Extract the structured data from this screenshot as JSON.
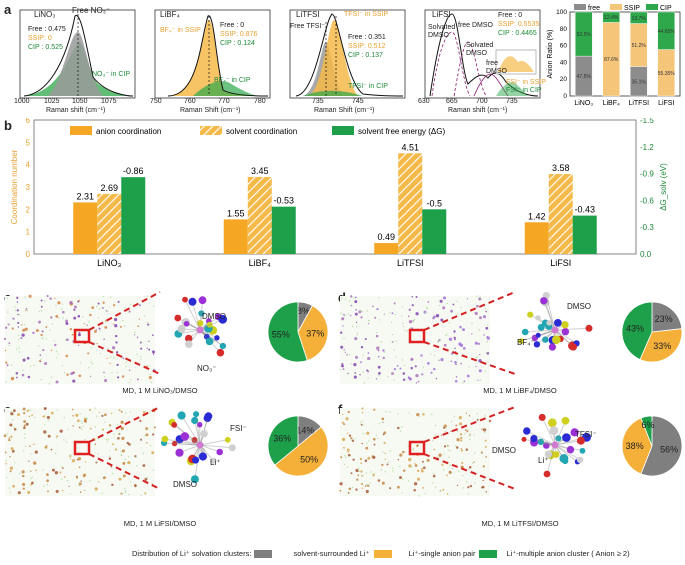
{
  "figure": {
    "panels": [
      "a",
      "b",
      "c",
      "d",
      "e",
      "f"
    ]
  },
  "panel_a": {
    "spectra": [
      {
        "title": "LiNO₃",
        "free_label": "Free NO₃⁻",
        "free": "Free : 0.475",
        "ssip": "SSIP: 0",
        "cip": "CIP : 0.525",
        "cip_label": "NO₃⁻ in CIP",
        "xlabel": "Raman shift (cm⁻¹)",
        "ticks": [
          "1000",
          "1025",
          "1050",
          "1075"
        ]
      },
      {
        "title": "LiBF₄",
        "ssip_label": "BF₄⁻ in SSIP",
        "free": "Free : 0",
        "ssip": "SSIP: 0.876",
        "cip": "CIP : 0.124",
        "cip_label": "BF₄⁻ in CIP",
        "xlabel": "Raman Shift (cm⁻¹)",
        "ticks": [
          "750",
          "760",
          "770",
          "780"
        ]
      },
      {
        "title": "LiTFSI",
        "free_label": "Free TFSI⁻",
        "ssip_label": "TFSI⁻ in SSIP",
        "free": "Free : 0.351",
        "ssip": "SSIP: 0.512",
        "cip": "CIP : 0.137",
        "cip_label": "TFSI⁻ in CIP",
        "xlabel": "Raman Shift (cm⁻¹)",
        "ticks": [
          "735",
          "745"
        ]
      },
      {
        "title": "LiFSI",
        "solvated": "Solvated DMSO",
        "free_dmso": "free DMSO",
        "solvated2": "Solvated DMSO",
        "free_dmso2": "free DMSO",
        "free": "Free : 0",
        "ssip": "SSIP: 0.5535",
        "cip": "CIP : 0.4465",
        "ssip_label": "FSI⁻ in SSIP",
        "cip_label": "FSI⁻ in CIP",
        "xlabel": "Raman shift (cm⁻¹)",
        "ticks": [
          "630",
          "665",
          "700",
          "735"
        ]
      }
    ]
  },
  "chart_data": [
    {
      "type": "bar",
      "title": "Anion Ratio",
      "ylabel": "Anion Ratio (%)",
      "ylim": [
        0,
        100
      ],
      "yticks": [
        "0",
        "20",
        "40",
        "60",
        "80",
        "100"
      ],
      "categories": [
        "LiNO₃",
        "LiBF₄",
        "LiTFSI",
        "LiFSI"
      ],
      "legend": [
        "free",
        "SSIP",
        "CIP"
      ],
      "series": [
        {
          "name": "free",
          "values": [
            47.5,
            0,
            35.1,
            0
          ]
        },
        {
          "name": "SSIP",
          "values": [
            0,
            87.6,
            51.2,
            55.35
          ]
        },
        {
          "name": "CIP",
          "values": [
            52.5,
            12.4,
            13.7,
            44.65
          ]
        }
      ],
      "labels": {
        "free": [
          "47.5%",
          "",
          "35.1%",
          ""
        ],
        "SSIP": [
          "",
          "87.6%",
          "51.2%",
          "55.35%"
        ],
        "CIP": [
          "52.5%",
          "12.4%",
          "13.7%",
          "44.65%"
        ]
      },
      "colors": {
        "free": "#8c8c8c",
        "SSIP": "#f5c57a",
        "CIP": "#2ea84a"
      }
    },
    {
      "type": "bar",
      "title": "Coordination",
      "ylabel": "Coordination number",
      "y2label": "ΔG_solv (eV)",
      "ylim": [
        0,
        6
      ],
      "y2lim": [
        0,
        -1.5
      ],
      "yticks": [
        "0",
        "1",
        "2",
        "3",
        "4",
        "5",
        "6"
      ],
      "y2ticks": [
        "0.0",
        "-0.3",
        "-0.6",
        "-0.9",
        "-1.2",
        "-1.5"
      ],
      "categories": [
        "LiNO₃",
        "LiBF₄",
        "LiTFSI",
        "LiFSI"
      ],
      "legend": [
        "anion coordination",
        "solvent coordination",
        "solvent free energy (ΔG)"
      ],
      "series": [
        {
          "name": "anion coordination",
          "values": [
            2.31,
            1.55,
            0.49,
            1.42
          ]
        },
        {
          "name": "solvent coordination",
          "values": [
            2.69,
            3.45,
            4.51,
            3.58
          ]
        },
        {
          "name": "solvent free energy (ΔG)",
          "values": [
            -0.86,
            -0.53,
            -0.5,
            -0.43
          ]
        }
      ],
      "value_labels": {
        "anion": [
          "2.31",
          "1.55",
          "0.49",
          "1.42"
        ],
        "solvent": [
          "2.69",
          "3.45",
          "4.51",
          "3.58"
        ],
        "dg": [
          "-0.86",
          "-0.53",
          "-0.5",
          "-0.43"
        ]
      },
      "colors": {
        "anion": "#f5a623",
        "solvent": "#f5b94a",
        "dg": "#1ea04a"
      }
    }
  ],
  "md_panels": [
    {
      "letter": "c",
      "caption": "MD, 1 M LiNO₃/DMSO",
      "mol_labels": [
        "DMSO",
        "NO₃⁻"
      ],
      "pie": [
        8,
        37,
        55
      ],
      "pie_labels": [
        "8%",
        "37%",
        "55%"
      ]
    },
    {
      "letter": "d",
      "caption": "MD, 1 M LiBF₄/DMSO",
      "mol_labels": [
        "DMSO",
        "BF₄⁻"
      ],
      "pie": [
        23,
        33,
        43
      ],
      "pie_labels": [
        "23%",
        "33%",
        "43%"
      ]
    },
    {
      "letter": "e",
      "caption": "MD, 1 M LiFSI/DMSO",
      "mol_labels": [
        "FSI⁻",
        "Li⁺",
        "DMSO"
      ],
      "pie": [
        14,
        50,
        36
      ],
      "pie_labels": [
        "14%",
        "50%",
        "36%"
      ]
    },
    {
      "letter": "f",
      "caption": "MD, 1 M LiTFSI/DMSO",
      "mol_labels": [
        "DMSO",
        "Li⁺",
        "TFSI⁻"
      ],
      "pie": [
        56,
        38,
        6
      ],
      "pie_labels": [
        "56%",
        "38%",
        "6%"
      ]
    }
  ],
  "pie_colors": [
    "#7f7f7f",
    "#f5b03a",
    "#1ea04a"
  ],
  "bottom_legend": {
    "title": "Distribution of Li⁺ solvation clusters:",
    "items": [
      "solvent-surrounded Li⁺",
      "Li⁺-single anion pair",
      "Li⁺-multiple anion cluster ( Anion ≥ 2)"
    ]
  }
}
